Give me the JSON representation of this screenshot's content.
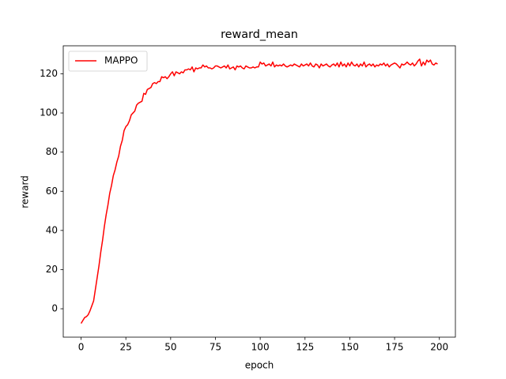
{
  "chart_data": {
    "type": "line",
    "title": "reward_mean",
    "x_label": "epoch",
    "y_label": "reward",
    "x": [
      0,
      1,
      2,
      3,
      4,
      5,
      6,
      7,
      8,
      9,
      10,
      11,
      12,
      13,
      14,
      15,
      16,
      17,
      18,
      19,
      20,
      21,
      22,
      23,
      24,
      25,
      26,
      27,
      28,
      29,
      30,
      31,
      32,
      33,
      34,
      35,
      36,
      37,
      38,
      39,
      40,
      41,
      42,
      43,
      44,
      45,
      46,
      47,
      48,
      49,
      50,
      51,
      52,
      53,
      54,
      55,
      56,
      57,
      58,
      59,
      60,
      61,
      62,
      63,
      64,
      65,
      66,
      67,
      68,
      69,
      70,
      71,
      72,
      73,
      74,
      75,
      76,
      77,
      78,
      79,
      80,
      81,
      82,
      83,
      84,
      85,
      86,
      87,
      88,
      89,
      90,
      91,
      92,
      93,
      94,
      95,
      96,
      97,
      98,
      99,
      100,
      101,
      102,
      103,
      104,
      105,
      106,
      107,
      108,
      109,
      110,
      111,
      112,
      113,
      114,
      115,
      116,
      117,
      118,
      119,
      120,
      121,
      122,
      123,
      124,
      125,
      126,
      127,
      128,
      129,
      130,
      131,
      132,
      133,
      134,
      135,
      136,
      137,
      138,
      139,
      140,
      141,
      142,
      143,
      144,
      145,
      146,
      147,
      148,
      149,
      150,
      151,
      152,
      153,
      154,
      155,
      156,
      157,
      158,
      159,
      160,
      161,
      162,
      163,
      164,
      165,
      166,
      167,
      168,
      169,
      170,
      171,
      172,
      173,
      174,
      175,
      176,
      177,
      178,
      179,
      180,
      181,
      182,
      183,
      184,
      185,
      186,
      187,
      188,
      189,
      190,
      191,
      192,
      193,
      194,
      195,
      196,
      197,
      198,
      199
    ],
    "series": [
      {
        "name": "MAPPO",
        "color": "#ff0000",
        "values": [
          -7.5,
          -6,
          -4.5,
          -4,
          -3,
          -1,
          1.5,
          4,
          10,
          16,
          22,
          29,
          35,
          42,
          48,
          53,
          59,
          63,
          68,
          71,
          75,
          78,
          83,
          86,
          91,
          93,
          94,
          96,
          99,
          100,
          101,
          104,
          105,
          105.5,
          106,
          110,
          109.5,
          112,
          112.5,
          113,
          115,
          115.5,
          115,
          116,
          116,
          118.5,
          118,
          118.5,
          117.5,
          118.5,
          120,
          121,
          119,
          121,
          120.5,
          120,
          121,
          120.5,
          122,
          122,
          122.5,
          122,
          123.5,
          121,
          123,
          122.5,
          123,
          123,
          124.5,
          123.5,
          124,
          123,
          123,
          122.5,
          123,
          124,
          124,
          123.5,
          123,
          123.5,
          124,
          123,
          124.5,
          122.5,
          123,
          123.5,
          122,
          124,
          123.5,
          124,
          123,
          122.5,
          124,
          123.5,
          123,
          123,
          123.5,
          123,
          123.5,
          123.5,
          126,
          125,
          125.5,
          124,
          124.5,
          125,
          124,
          126,
          123.5,
          124.5,
          124,
          124.5,
          124,
          125,
          124,
          123.5,
          124,
          124.5,
          124,
          125,
          124.5,
          124,
          123.5,
          125,
          124,
          124.5,
          125,
          124,
          125.5,
          124,
          123.5,
          125,
          124.5,
          123,
          125,
          124,
          124.5,
          125,
          124,
          123.5,
          124.5,
          125,
          124,
          125.5,
          123.5,
          126,
          124,
          125,
          123.5,
          125.5,
          124,
          126,
          124.5,
          124,
          125,
          123.5,
          125,
          124,
          126,
          123.5,
          124.5,
          125,
          124,
          125,
          123.5,
          124.5,
          124,
          125,
          124.5,
          125.5,
          124,
          125,
          123.5,
          124.5,
          125,
          125.5,
          125,
          124,
          123,
          125,
          124.5,
          125,
          126,
          125,
          124.5,
          125.5,
          124,
          125,
          126.5,
          127.5,
          124,
          126,
          124.5,
          127,
          126,
          127,
          125,
          124.5,
          125.5,
          125
        ]
      }
    ],
    "xlim": [
      -9.95,
      208.95
    ],
    "xticks": [
      0,
      25,
      50,
      75,
      100,
      125,
      150,
      175,
      200
    ],
    "ylim": [
      -14.5,
      134.3
    ],
    "yticks": [
      0,
      20,
      40,
      60,
      80,
      100,
      120
    ],
    "legend": "upper left"
  }
}
